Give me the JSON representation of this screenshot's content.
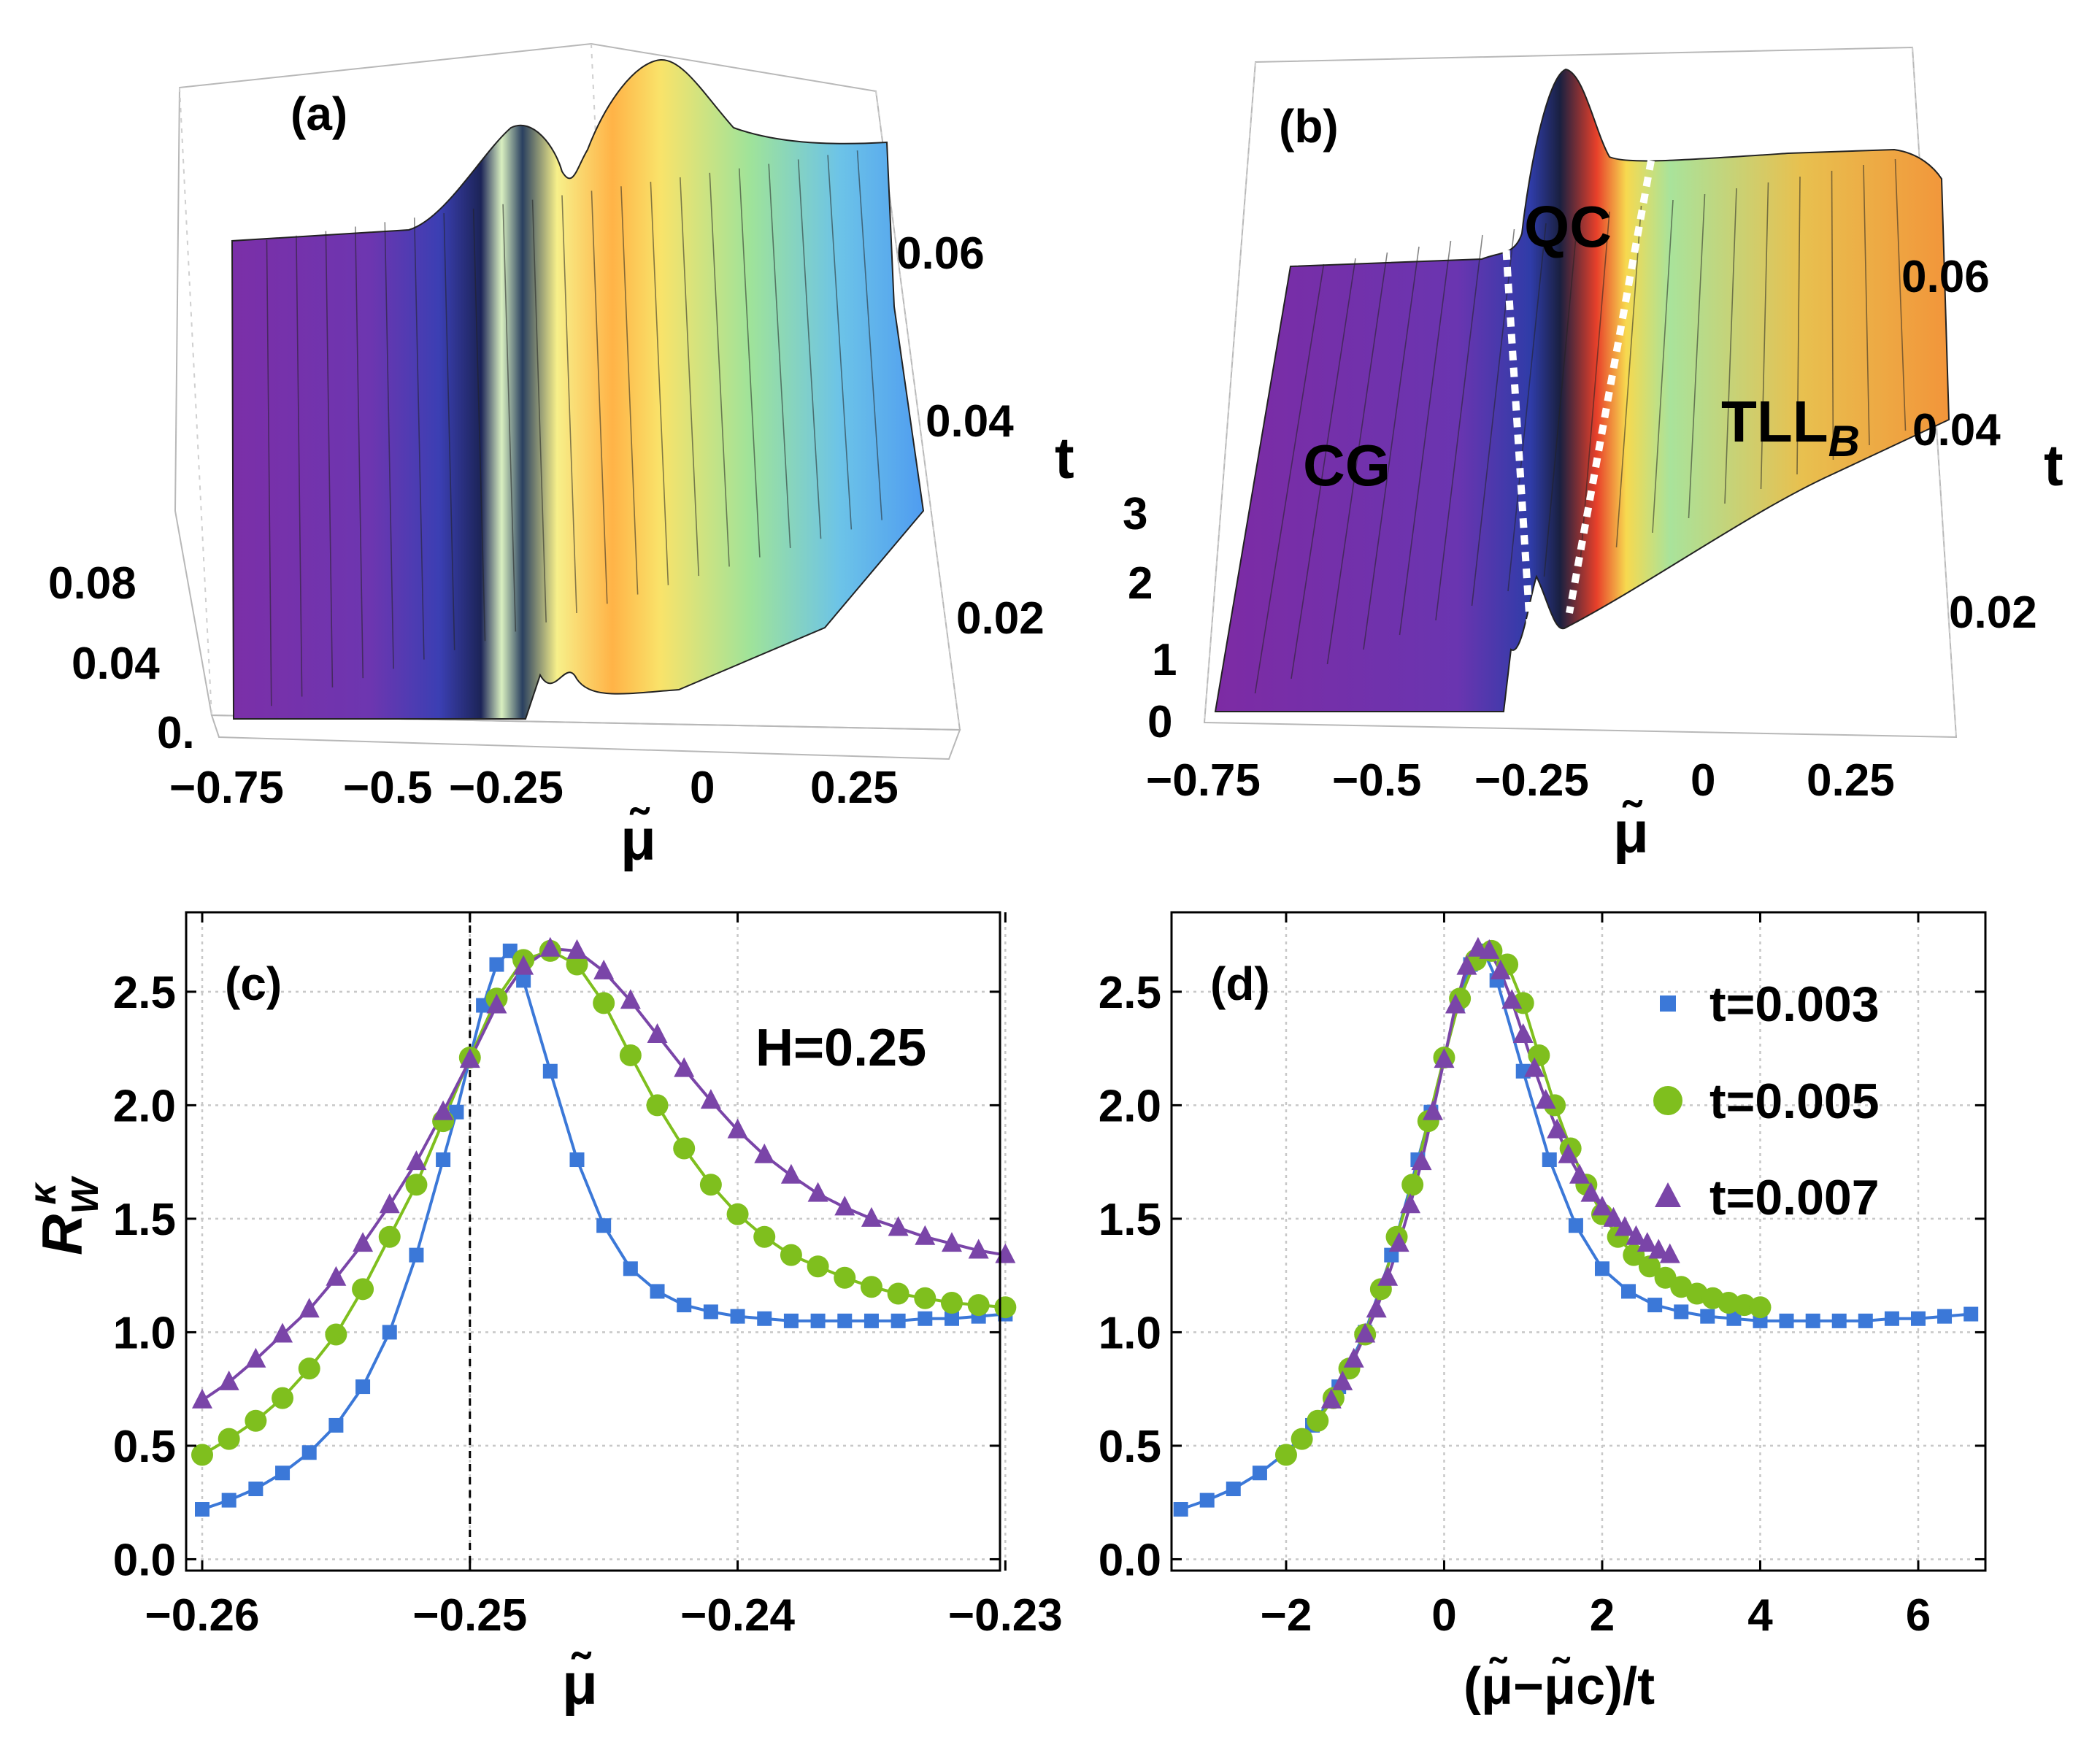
{
  "panels": {
    "a": {
      "label": "(a)",
      "x_axis_label": "μ̃",
      "x_ticks": [
        "−0.75",
        "−0.5",
        "−0.25",
        "0",
        "0.25"
      ],
      "t_label": "t",
      "t_ticks": [
        "0.02",
        "0.04",
        "0.06"
      ],
      "z_ticks": [
        "0.",
        "0.04",
        "0.08"
      ]
    },
    "b": {
      "label": "(b)",
      "x_axis_label": "μ̃",
      "x_ticks": [
        "−0.75",
        "−0.5",
        "−0.25",
        "0",
        "0.25"
      ],
      "t_label": "t",
      "t_ticks": [
        "0.02",
        "0.04",
        "0.06"
      ],
      "z_ticks": [
        "0",
        "1",
        "2",
        "3"
      ],
      "regions": {
        "cg": "CG",
        "qc": "QC",
        "tll": "TLL",
        "tll_sub": "B"
      }
    },
    "c": {
      "label": "(c)",
      "annotation": "H=0.25",
      "ylabel": "R",
      "ylabel_sub": "W",
      "ylabel_sup": "κ",
      "xlabel": "μ̃"
    },
    "d": {
      "label": "(d)",
      "xlabel": "(μ̃−μ̃c)/t"
    }
  },
  "colors": {
    "t003": "#3b78d8",
    "t005": "#7fbf1e",
    "t007": "#7a45a8"
  },
  "chart_data": [
    {
      "panel": "a",
      "type": "surface",
      "x_axis": "μ̃",
      "y_axis": "t",
      "xlim": [
        -0.85,
        0.35
      ],
      "ylim": [
        0,
        0.07
      ],
      "zlim": [
        0,
        0.1
      ],
      "z_ticks": [
        0,
        0.04,
        0.08
      ]
    },
    {
      "panel": "b",
      "type": "surface",
      "x_axis": "μ̃",
      "y_axis": "t",
      "xlim": [
        -0.85,
        0.35
      ],
      "ylim": [
        0,
        0.07
      ],
      "zlim": [
        0,
        3
      ],
      "z_ticks": [
        0,
        1,
        2,
        3
      ],
      "regions": [
        "CG",
        "QC",
        "TLLB"
      ]
    },
    {
      "panel": "c",
      "type": "scatter",
      "title": "",
      "xlabel": "μ̃",
      "ylabel": "R_W^κ",
      "xlim": [
        -0.2606,
        -0.2302
      ],
      "ylim": [
        -0.05,
        2.85
      ],
      "x_ticks": [
        -0.26,
        -0.25,
        -0.24,
        -0.23
      ],
      "y_ticks": [
        0.0,
        0.5,
        1.0,
        1.5,
        2.0,
        2.5
      ],
      "vline": -0.25,
      "grid": true,
      "series": [
        {
          "name": "t=0.003",
          "marker": "square",
          "x": [
            -0.26,
            -0.259,
            -0.258,
            -0.257,
            -0.256,
            -0.255,
            -0.254,
            -0.253,
            -0.252,
            -0.251,
            -0.2505,
            -0.25,
            -0.2495,
            -0.249,
            -0.2485,
            -0.248,
            -0.247,
            -0.246,
            -0.245,
            -0.244,
            -0.243,
            -0.242,
            -0.241,
            -0.24,
            -0.239,
            -0.238,
            -0.237,
            -0.236,
            -0.235,
            -0.234,
            -0.233,
            -0.232,
            -0.231,
            -0.23
          ],
          "y": [
            0.22,
            0.26,
            0.31,
            0.38,
            0.47,
            0.59,
            0.76,
            1.0,
            1.34,
            1.76,
            1.97,
            2.21,
            2.44,
            2.62,
            2.68,
            2.55,
            2.15,
            1.76,
            1.47,
            1.28,
            1.18,
            1.12,
            1.09,
            1.07,
            1.06,
            1.05,
            1.05,
            1.05,
            1.05,
            1.05,
            1.06,
            1.06,
            1.07,
            1.08
          ]
        },
        {
          "name": "t=0.005",
          "marker": "circle",
          "x": [
            -0.26,
            -0.259,
            -0.258,
            -0.257,
            -0.256,
            -0.255,
            -0.254,
            -0.253,
            -0.252,
            -0.251,
            -0.25,
            -0.249,
            -0.248,
            -0.247,
            -0.246,
            -0.245,
            -0.244,
            -0.243,
            -0.242,
            -0.241,
            -0.24,
            -0.239,
            -0.238,
            -0.237,
            -0.236,
            -0.235,
            -0.234,
            -0.233,
            -0.232,
            -0.231,
            -0.23
          ],
          "y": [
            0.46,
            0.53,
            0.61,
            0.71,
            0.84,
            0.99,
            1.19,
            1.42,
            1.65,
            1.93,
            2.21,
            2.47,
            2.64,
            2.68,
            2.62,
            2.45,
            2.22,
            2.0,
            1.81,
            1.65,
            1.52,
            1.42,
            1.34,
            1.29,
            1.24,
            1.2,
            1.17,
            1.15,
            1.13,
            1.12,
            1.11
          ]
        },
        {
          "name": "t=0.007",
          "marker": "triangle",
          "x": [
            -0.26,
            -0.259,
            -0.258,
            -0.257,
            -0.256,
            -0.255,
            -0.254,
            -0.253,
            -0.252,
            -0.251,
            -0.25,
            -0.249,
            -0.248,
            -0.247,
            -0.246,
            -0.245,
            -0.244,
            -0.243,
            -0.242,
            -0.241,
            -0.24,
            -0.239,
            -0.238,
            -0.237,
            -0.236,
            -0.235,
            -0.234,
            -0.233,
            -0.232,
            -0.231,
            -0.23
          ],
          "y": [
            0.7,
            0.78,
            0.88,
            0.99,
            1.1,
            1.24,
            1.39,
            1.56,
            1.75,
            1.97,
            2.2,
            2.44,
            2.61,
            2.69,
            2.68,
            2.59,
            2.46,
            2.31,
            2.16,
            2.02,
            1.89,
            1.78,
            1.69,
            1.61,
            1.55,
            1.5,
            1.46,
            1.42,
            1.39,
            1.36,
            1.34
          ]
        }
      ]
    },
    {
      "panel": "d",
      "type": "scatter",
      "title": "",
      "xlabel": "(μ̃−μ̃c)/t",
      "ylabel": "",
      "xlim": [
        -3.45,
        6.85
      ],
      "ylim": [
        -0.05,
        2.85
      ],
      "x_ticks": [
        -2,
        0,
        2,
        4,
        6
      ],
      "y_ticks": [
        0.0,
        0.5,
        1.0,
        1.5,
        2.0,
        2.5
      ],
      "grid": true,
      "legend": "top-right",
      "series": [
        {
          "name": "t=0.003",
          "marker": "square",
          "x": [
            -3.333,
            -3.0,
            -2.667,
            -2.333,
            -2.0,
            -1.667,
            -1.333,
            -1.0,
            -0.667,
            -0.333,
            -0.167,
            0.0,
            0.167,
            0.333,
            0.5,
            0.667,
            1.0,
            1.333,
            1.667,
            2.0,
            2.333,
            2.667,
            3.0,
            3.333,
            3.667,
            4.0,
            4.333,
            4.667,
            5.0,
            5.333,
            5.667,
            6.0,
            6.333,
            6.667
          ],
          "y": [
            0.22,
            0.26,
            0.31,
            0.38,
            0.47,
            0.59,
            0.76,
            1.0,
            1.34,
            1.76,
            1.97,
            2.21,
            2.44,
            2.62,
            2.68,
            2.55,
            2.15,
            1.76,
            1.47,
            1.28,
            1.18,
            1.12,
            1.09,
            1.07,
            1.06,
            1.05,
            1.05,
            1.05,
            1.05,
            1.05,
            1.06,
            1.06,
            1.07,
            1.08
          ]
        },
        {
          "name": "t=0.005",
          "marker": "circle",
          "x": [
            -2.0,
            -1.8,
            -1.6,
            -1.4,
            -1.2,
            -1.0,
            -0.8,
            -0.6,
            -0.4,
            -0.2,
            0.0,
            0.2,
            0.4,
            0.6,
            0.8,
            1.0,
            1.2,
            1.4,
            1.6,
            1.8,
            2.0,
            2.2,
            2.4,
            2.6,
            2.8,
            3.0,
            3.2,
            3.4,
            3.6,
            3.8,
            4.0
          ],
          "y": [
            0.46,
            0.53,
            0.61,
            0.71,
            0.84,
            0.99,
            1.19,
            1.42,
            1.65,
            1.93,
            2.21,
            2.47,
            2.64,
            2.68,
            2.62,
            2.45,
            2.22,
            2.0,
            1.81,
            1.65,
            1.52,
            1.42,
            1.34,
            1.29,
            1.24,
            1.2,
            1.17,
            1.15,
            1.13,
            1.12,
            1.11
          ]
        },
        {
          "name": "t=0.007",
          "marker": "triangle",
          "x": [
            -1.429,
            -1.286,
            -1.143,
            -1.0,
            -0.857,
            -0.714,
            -0.571,
            -0.429,
            -0.286,
            -0.143,
            0.0,
            0.143,
            0.286,
            0.429,
            0.571,
            0.714,
            0.857,
            1.0,
            1.143,
            1.286,
            1.429,
            1.571,
            1.714,
            1.857,
            2.0,
            2.143,
            2.286,
            2.429,
            2.571,
            2.714,
            2.857
          ],
          "y": [
            0.7,
            0.78,
            0.88,
            0.99,
            1.1,
            1.24,
            1.39,
            1.56,
            1.75,
            1.97,
            2.2,
            2.44,
            2.61,
            2.69,
            2.68,
            2.59,
            2.46,
            2.31,
            2.16,
            2.02,
            1.89,
            1.78,
            1.69,
            1.61,
            1.55,
            1.5,
            1.46,
            1.42,
            1.39,
            1.36,
            1.34
          ]
        }
      ]
    }
  ]
}
